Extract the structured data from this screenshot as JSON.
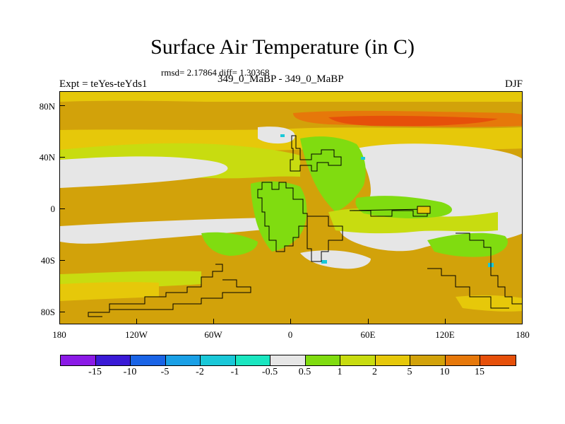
{
  "title": "Surface Air Temperature (in C)",
  "stats": "rmsd= 2.17864 diff= 1.30368",
  "subtitle_left": "Expt = teYes-teYds1",
  "subtitle_center": "349_0_MaBP - 349_0_MaBP",
  "subtitle_right": "DJF",
  "axes": {
    "y_ticks": [
      "80N",
      "40N",
      "0",
      "40S",
      "80S"
    ],
    "x_ticks": [
      "180",
      "120W",
      "60W",
      "0",
      "60E",
      "120E",
      "180"
    ]
  },
  "colorbar": {
    "colors": [
      "#8b1ae6",
      "#3a1ad6",
      "#1a64e6",
      "#1aa0e6",
      "#1ac8d8",
      "#1ae6c0",
      "#e6e6e6",
      "#80dc10",
      "#c8dc10",
      "#e6c80a",
      "#d2a20a",
      "#e6780a",
      "#e6500a"
    ],
    "labels": [
      "-15",
      "-10",
      "-5",
      "-2",
      "-1",
      "-0.5",
      "0.5",
      "1",
      "2",
      "5",
      "10",
      "15"
    ]
  },
  "map_colors": {
    "grey": "#e6e6e6",
    "green": "#80dc10",
    "yellowgreen": "#c8dc10",
    "gold": "#e6c80a",
    "orange": "#d2a20a",
    "darkorange": "#e6780a",
    "red": "#e6500a",
    "cyan": "#1ac8d8"
  }
}
